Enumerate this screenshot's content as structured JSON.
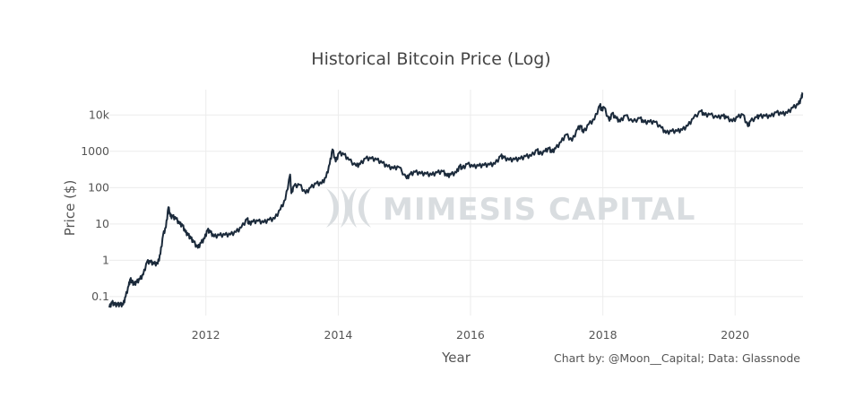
{
  "chart_data": {
    "type": "line",
    "title": "Historical Bitcoin Price (Log)",
    "xlabel": "Year",
    "ylabel": "Price ($)",
    "yscale": "log",
    "xlim": [
      "2010-07-17",
      "2021-01-10"
    ],
    "ylim": [
      0.03,
      50000
    ],
    "x_ticks": [
      "2012",
      "2014",
      "2016",
      "2018",
      "2020"
    ],
    "y_ticks": [
      {
        "label": "0.1",
        "value": 0.1
      },
      {
        "label": "1",
        "value": 1
      },
      {
        "label": "10",
        "value": 10
      },
      {
        "label": "100",
        "value": 100
      },
      {
        "label": "1000",
        "value": 1000
      },
      {
        "label": "10k",
        "value": 10000
      }
    ],
    "grid": true,
    "legend": "none",
    "line_color": "#1b2a3b",
    "series": [
      {
        "points": [
          [
            "2010-07-17",
            0.05
          ],
          [
            "2010-08-01",
            0.07
          ],
          [
            "2010-08-15",
            0.06
          ],
          [
            "2010-09-01",
            0.06
          ],
          [
            "2010-09-15",
            0.06
          ],
          [
            "2010-10-01",
            0.06
          ],
          [
            "2010-10-15",
            0.1
          ],
          [
            "2010-11-01",
            0.2
          ],
          [
            "2010-11-10",
            0.3
          ],
          [
            "2010-11-20",
            0.25
          ],
          [
            "2010-12-01",
            0.22
          ],
          [
            "2010-12-15",
            0.25
          ],
          [
            "2011-01-01",
            0.3
          ],
          [
            "2011-01-20",
            0.4
          ],
          [
            "2011-02-10",
            0.9
          ],
          [
            "2011-03-01",
            0.9
          ],
          [
            "2011-03-20",
            0.8
          ],
          [
            "2011-04-10",
            0.8
          ],
          [
            "2011-04-25",
            1.5
          ],
          [
            "2011-05-10",
            5
          ],
          [
            "2011-05-25",
            8
          ],
          [
            "2011-06-08",
            29
          ],
          [
            "2011-06-20",
            16
          ],
          [
            "2011-07-01",
            16
          ],
          [
            "2011-07-20",
            14
          ],
          [
            "2011-08-10",
            10
          ],
          [
            "2011-08-25",
            9
          ],
          [
            "2011-09-10",
            6
          ],
          [
            "2011-09-25",
            5
          ],
          [
            "2011-10-10",
            4
          ],
          [
            "2011-10-25",
            3.2
          ],
          [
            "2011-11-18",
            2.2
          ],
          [
            "2011-12-05",
            3
          ],
          [
            "2011-12-25",
            4
          ],
          [
            "2012-01-10",
            6.8
          ],
          [
            "2012-01-25",
            6
          ],
          [
            "2012-02-15",
            4.5
          ],
          [
            "2012-03-15",
            4.9
          ],
          [
            "2012-04-15",
            5
          ],
          [
            "2012-05-15",
            5.1
          ],
          [
            "2012-06-15",
            6
          ],
          [
            "2012-07-15",
            8
          ],
          [
            "2012-08-17",
            14
          ],
          [
            "2012-08-25",
            10
          ],
          [
            "2012-09-15",
            11.5
          ],
          [
            "2012-10-15",
            12
          ],
          [
            "2012-11-15",
            11
          ],
          [
            "2012-12-15",
            13
          ],
          [
            "2013-01-15",
            14
          ],
          [
            "2013-02-15",
            25
          ],
          [
            "2013-03-15",
            47
          ],
          [
            "2013-04-10",
            230
          ],
          [
            "2013-04-17",
            70
          ],
          [
            "2013-05-01",
            110
          ],
          [
            "2013-06-01",
            120
          ],
          [
            "2013-07-05",
            70
          ],
          [
            "2013-08-01",
            100
          ],
          [
            "2013-09-01",
            130
          ],
          [
            "2013-10-01",
            130
          ],
          [
            "2013-10-25",
            190
          ],
          [
            "2013-11-15",
            450
          ],
          [
            "2013-11-30",
            1130
          ],
          [
            "2013-12-18",
            520
          ],
          [
            "2014-01-05",
            900
          ],
          [
            "2014-02-01",
            820
          ],
          [
            "2014-03-01",
            580
          ],
          [
            "2014-04-10",
            400
          ],
          [
            "2014-05-01",
            440
          ],
          [
            "2014-06-01",
            640
          ],
          [
            "2014-07-01",
            630
          ],
          [
            "2014-08-01",
            590
          ],
          [
            "2014-09-01",
            480
          ],
          [
            "2014-10-01",
            380
          ],
          [
            "2014-11-01",
            340
          ],
          [
            "2014-12-01",
            370
          ],
          [
            "2015-01-14",
            180
          ],
          [
            "2015-02-01",
            230
          ],
          [
            "2015-03-01",
            270
          ],
          [
            "2015-04-01",
            245
          ],
          [
            "2015-05-01",
            240
          ],
          [
            "2015-06-01",
            225
          ],
          [
            "2015-07-01",
            260
          ],
          [
            "2015-08-01",
            280
          ],
          [
            "2015-08-25",
            210
          ],
          [
            "2015-09-15",
            230
          ],
          [
            "2015-10-15",
            260
          ],
          [
            "2015-11-04",
            400
          ],
          [
            "2015-11-15",
            330
          ],
          [
            "2015-12-15",
            450
          ],
          [
            "2016-01-15",
            380
          ],
          [
            "2016-02-15",
            400
          ],
          [
            "2016-03-15",
            415
          ],
          [
            "2016-04-15",
            430
          ],
          [
            "2016-05-15",
            450
          ],
          [
            "2016-06-17",
            750
          ],
          [
            "2016-07-01",
            670
          ],
          [
            "2016-08-01",
            580
          ],
          [
            "2016-09-01",
            600
          ],
          [
            "2016-10-01",
            620
          ],
          [
            "2016-11-01",
            730
          ],
          [
            "2016-12-01",
            750
          ],
          [
            "2017-01-04",
            1100
          ],
          [
            "2017-01-15",
            830
          ],
          [
            "2017-02-15",
            1000
          ],
          [
            "2017-03-10",
            1200
          ],
          [
            "2017-03-25",
            950
          ],
          [
            "2017-04-15",
            1200
          ],
          [
            "2017-05-15",
            1800
          ],
          [
            "2017-06-12",
            2900
          ],
          [
            "2017-07-15",
            1950
          ],
          [
            "2017-08-15",
            4200
          ],
          [
            "2017-09-02",
            4900
          ],
          [
            "2017-09-15",
            3300
          ],
          [
            "2017-10-15",
            5600
          ],
          [
            "2017-11-15",
            7500
          ],
          [
            "2017-12-17",
            19500
          ],
          [
            "2017-12-22",
            13500
          ],
          [
            "2018-01-07",
            16500
          ],
          [
            "2018-02-06",
            6900
          ],
          [
            "2018-02-20",
            11000
          ],
          [
            "2018-03-15",
            8200
          ],
          [
            "2018-04-06",
            6600
          ],
          [
            "2018-05-05",
            9800
          ],
          [
            "2018-06-15",
            6500
          ],
          [
            "2018-07-25",
            8200
          ],
          [
            "2018-08-15",
            6300
          ],
          [
            "2018-09-15",
            6500
          ],
          [
            "2018-10-15",
            6400
          ],
          [
            "2018-11-20",
            4500
          ],
          [
            "2018-12-15",
            3200
          ],
          [
            "2019-01-15",
            3600
          ],
          [
            "2019-02-15",
            3600
          ],
          [
            "2019-03-15",
            3900
          ],
          [
            "2019-04-15",
            5100
          ],
          [
            "2019-05-15",
            8000
          ],
          [
            "2019-06-26",
            12900
          ],
          [
            "2019-07-15",
            10000
          ],
          [
            "2019-08-15",
            10300
          ],
          [
            "2019-09-25",
            8500
          ],
          [
            "2019-10-26",
            9500
          ],
          [
            "2019-11-15",
            8500
          ],
          [
            "2019-12-17",
            6700
          ],
          [
            "2020-01-15",
            8800
          ],
          [
            "2020-02-13",
            10300
          ],
          [
            "2020-03-12",
            4900
          ],
          [
            "2020-03-25",
            6700
          ],
          [
            "2020-04-30",
            8700
          ],
          [
            "2020-05-15",
            9300
          ],
          [
            "2020-06-15",
            9400
          ],
          [
            "2020-07-15",
            9200
          ],
          [
            "2020-08-15",
            11800
          ],
          [
            "2020-09-15",
            10800
          ],
          [
            "2020-10-15",
            11400
          ],
          [
            "2020-11-15",
            16000
          ],
          [
            "2020-12-15",
            19500
          ],
          [
            "2021-01-01",
            29000
          ],
          [
            "2021-01-08",
            41000
          ]
        ]
      }
    ]
  },
  "watermark": {
    "brand_text": "MIMESIS CAPITAL"
  },
  "credit": "Chart by: @Moon__Capital; Data: Glassnode"
}
